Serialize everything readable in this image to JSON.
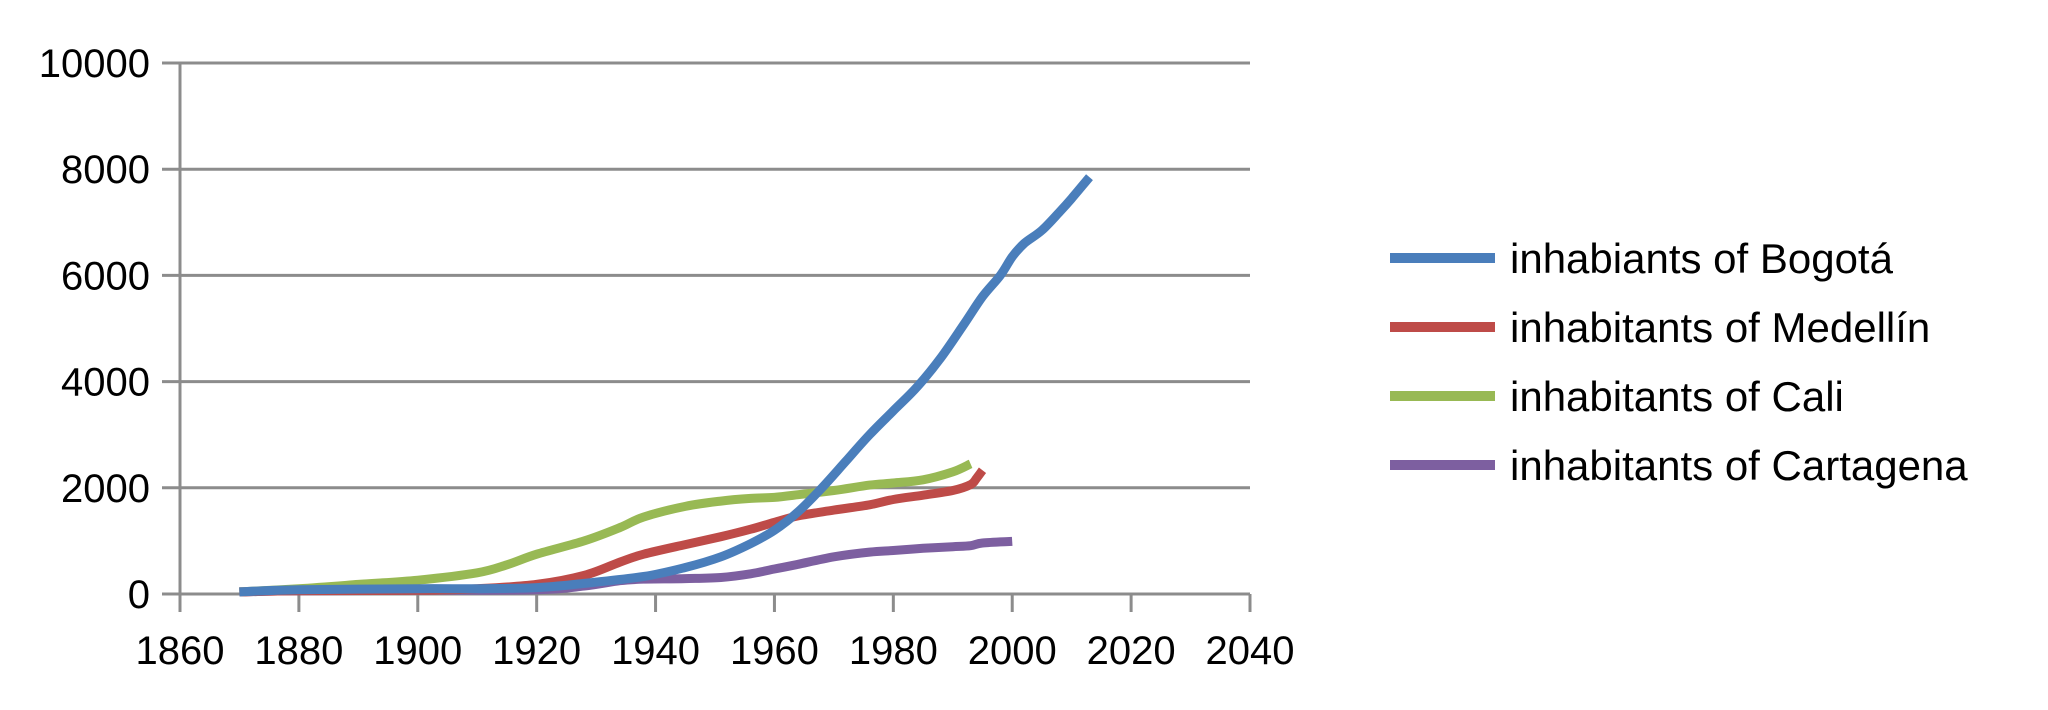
{
  "chart_data": {
    "type": "line",
    "title": "",
    "xlabel": "",
    "ylabel": "",
    "xlim": [
      1860,
      2040
    ],
    "ylim": [
      0,
      10000
    ],
    "x_ticks": [
      1860,
      1880,
      1900,
      1920,
      1940,
      1960,
      1980,
      2000,
      2020,
      2040
    ],
    "y_ticks": [
      0,
      2000,
      4000,
      6000,
      8000,
      10000
    ],
    "grid": "horizontal",
    "legend": "right",
    "series": [
      {
        "name": "inhabiants of Bogotá",
        "color": "#4a7ebb",
        "x": [
          1870,
          1880,
          1900,
          1910,
          1920,
          1928,
          1938,
          1945,
          1951,
          1956,
          1960,
          1964,
          1968,
          1972,
          1976,
          1980,
          1984,
          1988,
          1992,
          1995,
          1998,
          2000,
          2002,
          2005,
          2008,
          2010,
          2013
        ],
        "y": [
          40,
          80,
          100,
          100,
          120,
          200,
          330,
          500,
          700,
          950,
          1200,
          1550,
          2000,
          2500,
          3000,
          3450,
          3900,
          4450,
          5100,
          5600,
          6000,
          6350,
          6600,
          6850,
          7200,
          7450,
          7850
        ]
      },
      {
        "name": "inhabitants of Medellín",
        "color": "#be4b48",
        "x": [
          1870,
          1880,
          1900,
          1910,
          1920,
          1928,
          1934,
          1938,
          1945,
          1951,
          1956,
          1960,
          1964,
          1970,
          1976,
          1980,
          1985,
          1990,
          1993,
          1994,
          1995
        ],
        "y": [
          40,
          60,
          70,
          100,
          180,
          350,
          600,
          750,
          930,
          1080,
          1220,
          1350,
          1470,
          1580,
          1680,
          1780,
          1860,
          1950,
          2060,
          2180,
          2330
        ]
      },
      {
        "name": "inhabitants of Cali",
        "color": "#98b954",
        "x": [
          1870,
          1880,
          1890,
          1900,
          1910,
          1915,
          1920,
          1928,
          1934,
          1938,
          1945,
          1951,
          1956,
          1960,
          1964,
          1970,
          1976,
          1980,
          1985,
          1990,
          1993
        ],
        "y": [
          40,
          100,
          180,
          260,
          400,
          550,
          750,
          1000,
          1250,
          1450,
          1650,
          1750,
          1800,
          1820,
          1870,
          1950,
          2050,
          2090,
          2150,
          2300,
          2450
        ]
      },
      {
        "name": "inhabitants of Cartagena",
        "color": "#7d5fa0",
        "x": [
          1870,
          1880,
          1900,
          1920,
          1928,
          1934,
          1938,
          1945,
          1951,
          1956,
          1960,
          1964,
          1970,
          1976,
          1980,
          1985,
          1990,
          1993,
          1995,
          2000
        ],
        "y": [
          40,
          60,
          70,
          80,
          150,
          250,
          280,
          290,
          310,
          380,
          470,
          560,
          700,
          790,
          820,
          860,
          890,
          910,
          960,
          990
        ]
      }
    ]
  }
}
